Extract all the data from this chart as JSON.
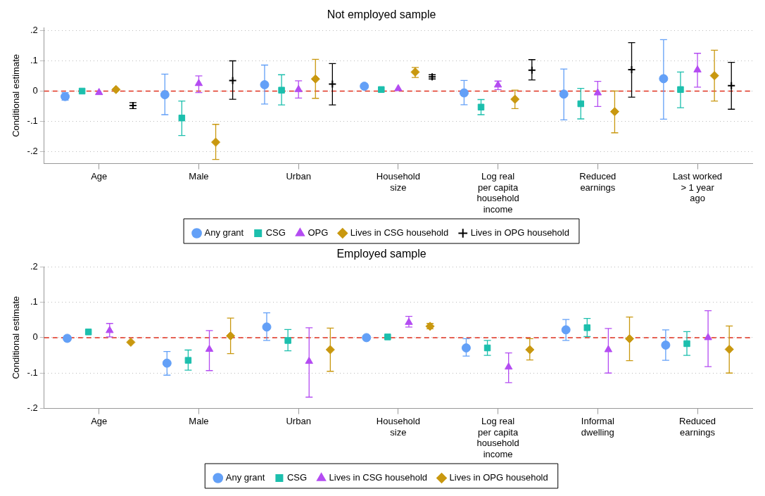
{
  "chart_data": [
    {
      "type": "scatter",
      "title": "Not employed sample",
      "ylabel": "Conditional estimate",
      "categories": [
        "Age",
        "Male",
        "Urban",
        "Household\nsize",
        "Log real\nper capita\nhousehold\nincome",
        "Reduced\nearnings",
        "Last worked\n> 1 year\nago"
      ],
      "ylim": [
        -0.24,
        0.21
      ],
      "yticks": [
        {
          "value": -0.2,
          "label": "-.2"
        },
        {
          "value": -0.1,
          "label": "-.1"
        },
        0,
        {
          "value": 0.1,
          "label": ".1"
        },
        {
          "value": 0.2,
          "label": ".2"
        }
      ],
      "grid": "y",
      "legend": "bottom",
      "ref_lines": [
        {
          "axis": "y",
          "value": 0,
          "color": "#e0301e",
          "line_style": "dashed"
        }
      ],
      "series": [
        {
          "name": "Any grant",
          "color": "#63a0f7",
          "marker": "circle",
          "values": [
            -0.018,
            -0.012,
            0.021,
            0.016,
            -0.006,
            -0.01,
            0.041
          ],
          "errors": [
            [
              -0.03,
              -0.005
            ],
            [
              -0.078,
              0.056
            ],
            [
              -0.043,
              0.086
            ],
            null,
            [
              -0.045,
              0.035
            ],
            [
              -0.095,
              0.073
            ],
            [
              -0.093,
              0.17
            ]
          ]
        },
        {
          "name": "CSG",
          "color": "#1cbfad",
          "marker": "square",
          "values": [
            0.0,
            -0.089,
            0.003,
            0.005,
            -0.053,
            -0.042,
            0.005
          ],
          "errors": [
            null,
            [
              -0.147,
              -0.033
            ],
            [
              -0.046,
              0.054
            ],
            null,
            [
              -0.078,
              -0.028
            ],
            [
              -0.092,
              0.009
            ],
            [
              -0.055,
              0.063
            ]
          ]
        },
        {
          "name": "OPG",
          "color": "#b44cf2",
          "marker": "triangle",
          "values": [
            -0.005,
            0.025,
            0.005,
            0.008,
            0.02,
            -0.006,
            0.07
          ],
          "errors": [
            null,
            [
              -0.005,
              0.05
            ],
            [
              -0.023,
              0.034
            ],
            null,
            [
              0.005,
              0.033
            ],
            [
              -0.051,
              0.032
            ],
            [
              0.013,
              0.125
            ]
          ]
        },
        {
          "name": "Lives in CSG household",
          "color": "#c9980f",
          "marker": "diamond",
          "values": [
            0.005,
            -0.169,
            0.04,
            0.063,
            -0.027,
            -0.068,
            0.051
          ],
          "errors": [
            null,
            [
              -0.226,
              -0.11
            ],
            [
              -0.024,
              0.105
            ],
            [
              0.045,
              0.078
            ],
            [
              -0.058,
              0.003
            ],
            [
              -0.138,
              0.0
            ],
            [
              -0.033,
              0.135
            ]
          ]
        },
        {
          "name": "Lives in OPG household",
          "color": "#000000",
          "marker": "cross",
          "values": [
            -0.048,
            0.035,
            0.023,
            0.047,
            0.069,
            0.071,
            0.018
          ],
          "errors": [
            [
              -0.058,
              -0.038
            ],
            [
              -0.027,
              0.1
            ],
            [
              -0.046,
              0.091
            ],
            [
              0.04,
              0.054
            ],
            [
              0.037,
              0.104
            ],
            [
              -0.02,
              0.16
            ],
            [
              -0.06,
              0.095
            ]
          ]
        }
      ]
    },
    {
      "type": "scatter",
      "title": "Employed sample",
      "ylabel": "Conditional estimate",
      "categories": [
        "Age",
        "Male",
        "Urban",
        "Household\nsize",
        "Log real\nper capita\nhousehold\nincome",
        "Informal\ndwelling",
        "Reduced\nearnings"
      ],
      "ylim": [
        -0.2,
        0.2
      ],
      "yticks": [
        {
          "value": -0.2,
          "label": "-.2"
        },
        {
          "value": -0.1,
          "label": "-.1"
        },
        0,
        {
          "value": 0.1,
          "label": ".1"
        },
        {
          "value": 0.2,
          "label": ".2"
        }
      ],
      "grid": "y",
      "legend": "bottom",
      "ref_lines": [
        {
          "axis": "y",
          "value": 0,
          "color": "#e0301e",
          "line_style": "dashed"
        }
      ],
      "series": [
        {
          "name": "Any grant",
          "color": "#63a0f7",
          "marker": "circle",
          "values": [
            -0.002,
            -0.072,
            0.03,
            0.0,
            -0.029,
            0.022,
            -0.021
          ],
          "errors": [
            null,
            [
              -0.106,
              -0.039
            ],
            [
              -0.008,
              0.07
            ],
            null,
            [
              -0.052,
              -0.003
            ],
            [
              -0.008,
              0.051
            ],
            [
              -0.064,
              0.022
            ]
          ]
        },
        {
          "name": "CSG",
          "color": "#1cbfad",
          "marker": "square",
          "values": [
            0.016,
            -0.064,
            -0.008,
            0.002,
            -0.029,
            0.028,
            -0.017
          ],
          "errors": [
            null,
            [
              -0.092,
              -0.035
            ],
            [
              -0.037,
              0.023
            ],
            null,
            [
              -0.05,
              -0.008
            ],
            [
              0.003,
              0.054
            ],
            [
              -0.05,
              0.017
            ]
          ]
        },
        {
          "name": "Lives in CSG household",
          "color": "#b44cf2",
          "marker": "triangle",
          "values": [
            0.02,
            -0.033,
            -0.067,
            0.043,
            -0.083,
            -0.034,
            0.0
          ],
          "errors": [
            [
              0.002,
              0.04
            ],
            [
              -0.093,
              0.02
            ],
            [
              -0.168,
              0.028
            ],
            [
              0.03,
              0.06
            ],
            [
              -0.127,
              -0.043
            ],
            [
              -0.1,
              0.026
            ],
            [
              -0.082,
              0.076
            ]
          ]
        },
        {
          "name": "Lives in OPG household",
          "color": "#c9980f",
          "marker": "diamond",
          "values": [
            -0.013,
            0.005,
            -0.034,
            0.032,
            -0.034,
            -0.003,
            -0.033
          ],
          "errors": [
            null,
            [
              -0.045,
              0.055
            ],
            [
              -0.095,
              0.027
            ],
            [
              0.025,
              0.04
            ],
            [
              -0.063,
              -0.003
            ],
            [
              -0.065,
              0.058
            ],
            [
              -0.1,
              0.033
            ]
          ]
        }
      ]
    }
  ]
}
